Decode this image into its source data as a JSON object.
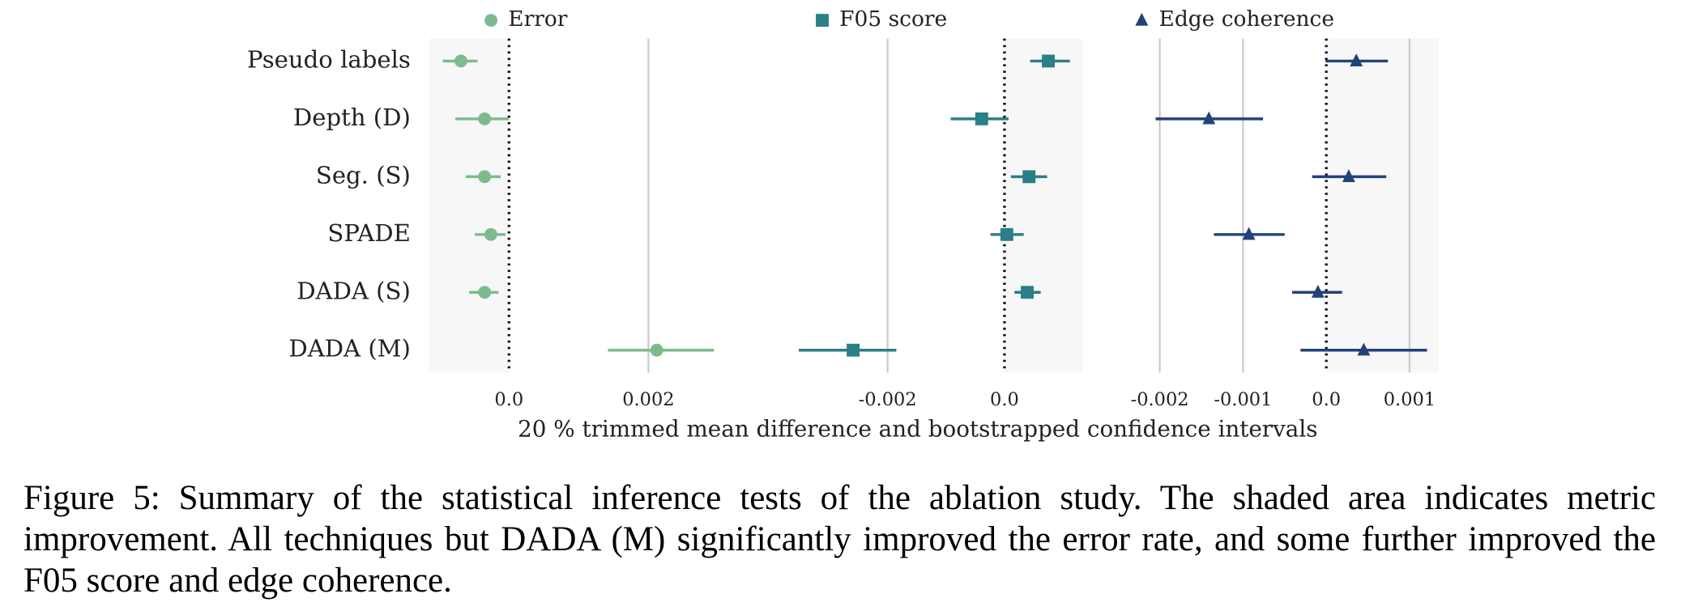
{
  "chart_data": [
    {
      "type": "forest",
      "categories": [
        "Pseudo labels",
        "Depth (D)",
        "Seg. (S)",
        "SPADE",
        "DADA (S)",
        "DADA (M)"
      ],
      "series": [
        {
          "name": "Error",
          "color": "#7dbb8e",
          "marker": "circle",
          "values": [
            -0.00069,
            -0.00035,
            -0.00035,
            -0.00026,
            -0.00035,
            0.00212
          ],
          "lower": [
            -0.00095,
            -0.00077,
            -0.00062,
            -0.00049,
            -0.00057,
            0.00142
          ],
          "upper": [
            -0.00045,
            0.0,
            -0.00012,
            -5e-05,
            -0.00015,
            0.00294
          ]
        }
      ],
      "xlim": [
        -0.00115,
        0.00331
      ],
      "xticks": [
        {
          "value": 0,
          "label": "0.0"
        },
        0.002
      ],
      "shade": "left",
      "grid": true
    },
    {
      "type": "forest",
      "series": [
        {
          "name": "F05 score",
          "color": "#2b7f86",
          "marker": "square",
          "values": [
            0.00075,
            -0.00039,
            0.00042,
            4e-05,
            0.00039,
            -0.00259
          ],
          "lower": [
            0.00044,
            -0.00092,
            0.00011,
            -0.00024,
            0.00017,
            -0.00352
          ],
          "upper": [
            0.00112,
            7e-05,
            0.00073,
            0.00033,
            0.00062,
            -0.00185
          ]
        }
      ],
      "xlim": [
        -0.00398,
        0.00134
      ],
      "xticks": [
        -0.002,
        {
          "value": 0,
          "label": "0.0"
        }
      ],
      "shade": "right",
      "grid": true
    },
    {
      "type": "forest",
      "series": [
        {
          "name": "Edge coherence",
          "color": "#23427a",
          "marker": "triangle",
          "values": [
            0.00036,
            -0.00141,
            0.00027,
            -0.00093,
            -0.0001,
            0.00045
          ],
          "lower": [
            -1e-05,
            -0.00205,
            -0.00017,
            -0.00135,
            -0.00041,
            -0.00031
          ],
          "upper": [
            0.00074,
            -0.00076,
            0.00072,
            -0.0005,
            0.00019,
            0.00121
          ]
        }
      ],
      "xlim": [
        -0.00241,
        0.00135
      ],
      "xticks": [
        -0.002,
        -0.001,
        {
          "value": 0,
          "label": "0.0"
        },
        0.001
      ],
      "shade": "right",
      "grid": true
    }
  ],
  "xlabel": "20 % trimmed mean difference and bootstrapped confidence intervals",
  "caption": "Figure 5: Summary of the statistical inference tests of the ablation study. The shaded area indicates metric improvement. All techniques but DADA (M) significantly improved the error rate, and some further improved the F05 score and edge coherence."
}
